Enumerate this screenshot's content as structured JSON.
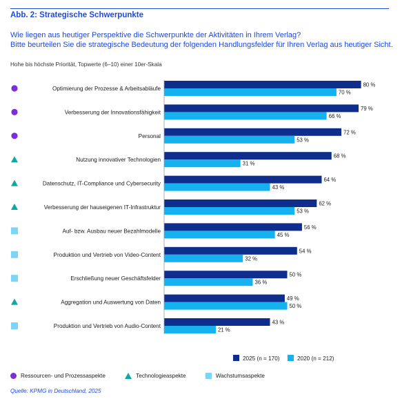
{
  "figure": {
    "title": "Abb. 2: Strategische Schwerpunkte",
    "question_line1": "Wie liegen aus heutiger Perspektive die Schwerpunkte der Aktivitäten in Ihrem Verlag?",
    "question_line2": "Bitte beurteilen Sie die strategische Bedeutung der folgenden Handlungsfelder für Ihren Verlag aus heutiger Sicht.",
    "scale_note": "Hohe bis höchste Priorität, Topwerte (6–10) einer 10er-Skala",
    "source": "Quelle: KPMG in Deutschland, 2025"
  },
  "colors": {
    "series_2025": "#0f2d8c",
    "series_2020": "#16b2f0",
    "ressourcen": "#7b2fd6",
    "technologie": "#0fa6a6",
    "wachstum": "#7dd4f7",
    "accent": "#1e49e2"
  },
  "category_legend": [
    {
      "type": "circle",
      "label": "Ressourcen- und Prozessaspekte"
    },
    {
      "type": "triangle",
      "label": "Technologieaspekte"
    },
    {
      "type": "square",
      "label": "Wachstumsaspekte"
    }
  ],
  "chart_data": {
    "type": "bar",
    "orientation": "horizontal",
    "unit": "%",
    "xlim": [
      0,
      100
    ],
    "grid": false,
    "legend_position": "bottom-right",
    "categories": [
      "Optimierung der Prozesse & Arbeitsabläufe",
      "Verbesserung der Innovationsfähigkeit",
      "Personal",
      "Nutzung innovativer Technologien",
      "Datenschutz, IT-Compliance und Cybersecurity",
      "Verbesserung der hauseigenen IT-Infrastruktur",
      "Auf- bzw. Ausbau neuer Bezahlmodelle",
      "Produktion und Vertrieb von Video-Content",
      "Erschließung neuer Geschäftsfelder",
      "Aggregation und Auswertung von Daten",
      "Produktion und Vertrieb von Audio-Content"
    ],
    "category_groups": [
      "circle",
      "circle",
      "circle",
      "triangle",
      "triangle",
      "triangle",
      "square",
      "square",
      "square",
      "triangle",
      "square"
    ],
    "series": [
      {
        "name": "2025 (n = 170)",
        "values": [
          80,
          79,
          72,
          68,
          64,
          62,
          56,
          54,
          50,
          49,
          43
        ]
      },
      {
        "name": "2020 (n = 212)",
        "values": [
          70,
          66,
          53,
          31,
          43,
          53,
          45,
          32,
          36,
          50,
          21
        ]
      }
    ]
  }
}
